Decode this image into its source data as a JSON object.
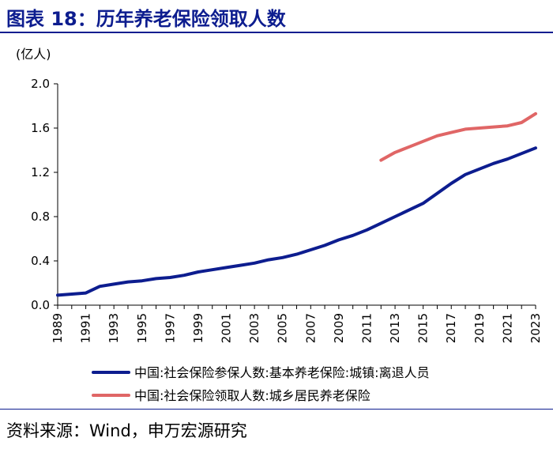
{
  "header": {
    "title": "图表 18：历年养老保险领取人数"
  },
  "footer": {
    "source": "资料来源：Wind，申万宏源研究"
  },
  "colors": {
    "title": "#0d1d8f",
    "series1": "#0d1d8f",
    "series2": "#e06666"
  },
  "chart_data": {
    "type": "line",
    "unit_label": "(亿人)",
    "ylim": [
      0,
      2.0
    ],
    "yticks": [
      "0.0",
      "0.4",
      "0.8",
      "1.2",
      "1.6",
      "2.0"
    ],
    "xlim": [
      1989,
      2023
    ],
    "xticks": [
      "1989",
      "1991",
      "1993",
      "1995",
      "1997",
      "1999",
      "2001",
      "2003",
      "2005",
      "2007",
      "2009",
      "2011",
      "2013",
      "2015",
      "2017",
      "2019",
      "2021",
      "2023"
    ],
    "grid": false,
    "legend_position": "bottom",
    "series": [
      {
        "name": "中国:社会保险参保人数:基本养老保险:城镇:离退人员",
        "x": [
          1989,
          1990,
          1991,
          1992,
          1993,
          1994,
          1995,
          1996,
          1997,
          1998,
          1999,
          2000,
          2001,
          2002,
          2003,
          2004,
          2005,
          2006,
          2007,
          2008,
          2009,
          2010,
          2011,
          2012,
          2013,
          2014,
          2015,
          2016,
          2017,
          2018,
          2019,
          2020,
          2021,
          2022,
          2023
        ],
        "y": [
          0.09,
          0.1,
          0.11,
          0.17,
          0.19,
          0.21,
          0.22,
          0.24,
          0.25,
          0.27,
          0.3,
          0.32,
          0.34,
          0.36,
          0.38,
          0.41,
          0.43,
          0.46,
          0.5,
          0.54,
          0.59,
          0.63,
          0.68,
          0.74,
          0.8,
          0.86,
          0.92,
          1.01,
          1.1,
          1.18,
          1.23,
          1.28,
          1.32,
          1.37,
          1.42
        ]
      },
      {
        "name": "中国:社会保险领取人数:城乡居民养老保险",
        "x": [
          2012,
          2013,
          2014,
          2015,
          2016,
          2017,
          2018,
          2019,
          2020,
          2021,
          2022,
          2023
        ],
        "y": [
          1.31,
          1.38,
          1.43,
          1.48,
          1.53,
          1.56,
          1.59,
          1.6,
          1.61,
          1.62,
          1.65,
          1.73
        ]
      }
    ]
  }
}
